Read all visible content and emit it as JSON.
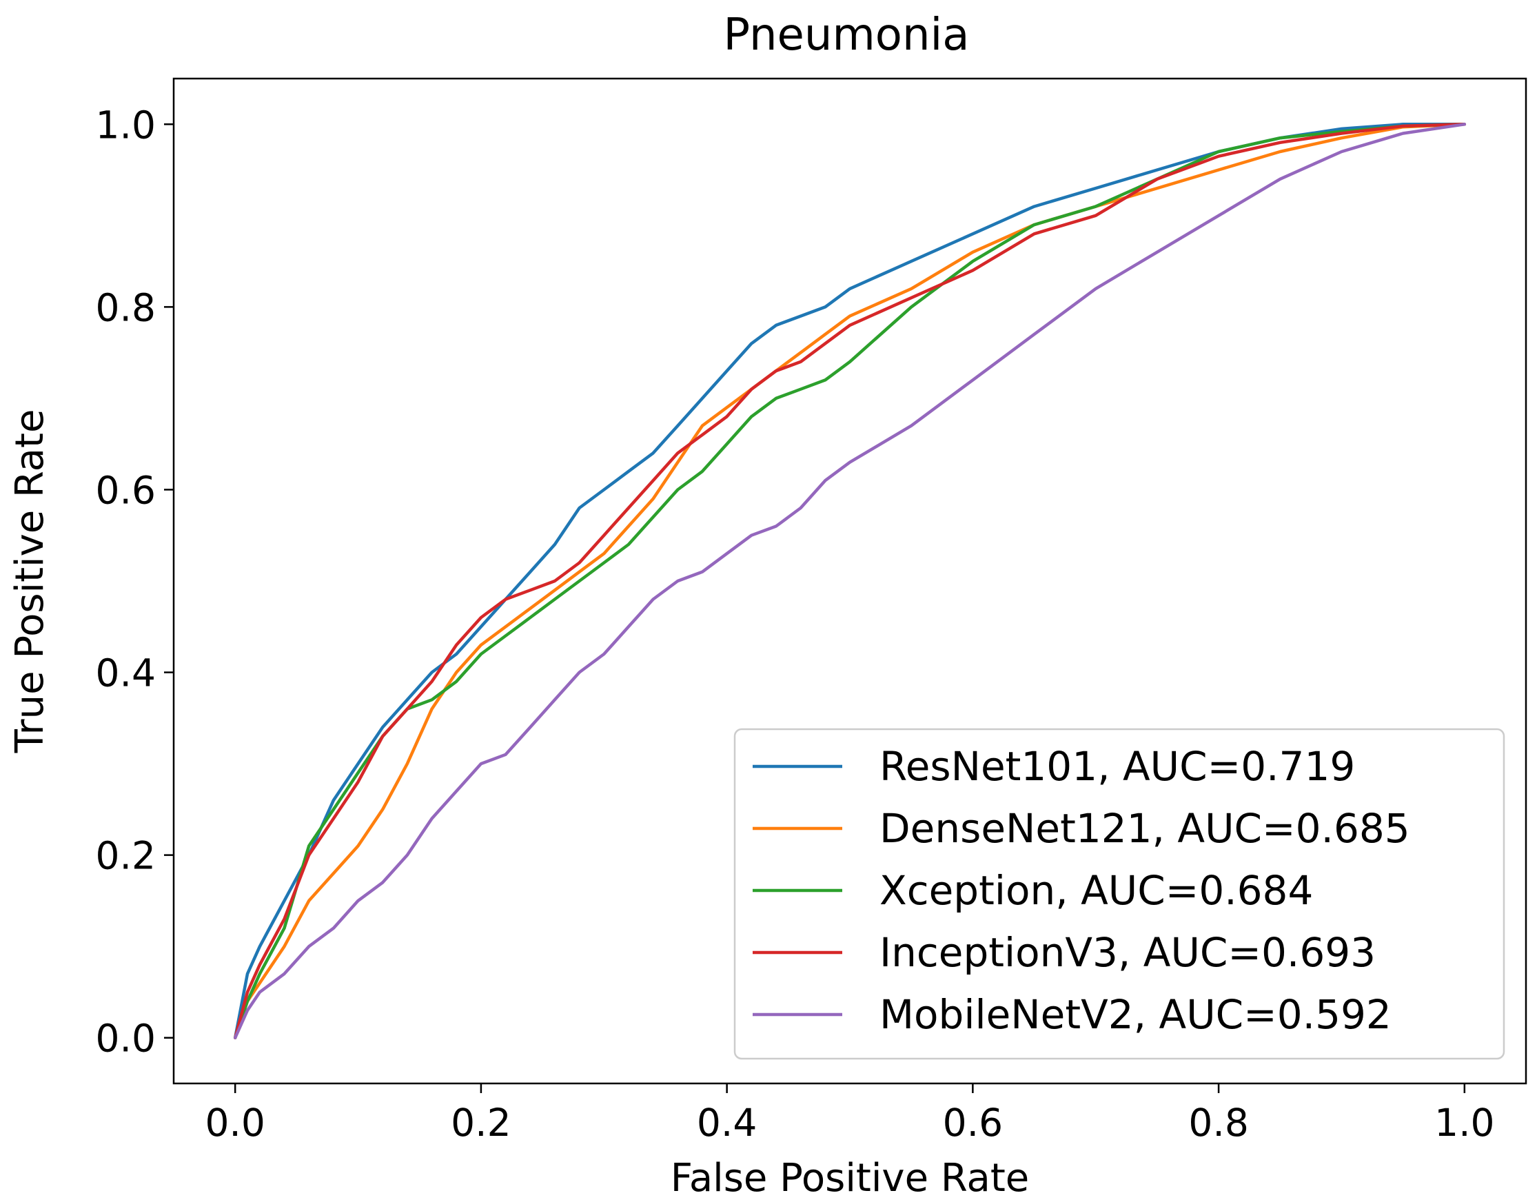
{
  "chart_data": {
    "type": "line",
    "title": "Pneumonia",
    "xlabel": "False Positive Rate",
    "ylabel": "True Positive Rate",
    "xlim": [
      -0.05,
      1.05
    ],
    "ylim": [
      -0.05,
      1.05
    ],
    "xticks": [
      "0.0",
      "0.2",
      "0.4",
      "0.6",
      "0.8",
      "1.0"
    ],
    "yticks": [
      "0.0",
      "0.2",
      "0.4",
      "0.6",
      "0.8",
      "1.0"
    ],
    "grid": false,
    "legend_position": "lower-right",
    "series": [
      {
        "name": "ResNet101, AUC=0.719",
        "color": "#1f77b4",
        "x": [
          0,
          0.01,
          0.02,
          0.04,
          0.06,
          0.08,
          0.1,
          0.12,
          0.14,
          0.16,
          0.18,
          0.2,
          0.22,
          0.24,
          0.26,
          0.28,
          0.3,
          0.32,
          0.34,
          0.36,
          0.38,
          0.4,
          0.42,
          0.44,
          0.46,
          0.48,
          0.5,
          0.55,
          0.6,
          0.65,
          0.7,
          0.75,
          0.8,
          0.85,
          0.9,
          0.95,
          1.0
        ],
        "y": [
          0,
          0.07,
          0.1,
          0.15,
          0.2,
          0.26,
          0.3,
          0.34,
          0.37,
          0.4,
          0.42,
          0.45,
          0.48,
          0.51,
          0.54,
          0.58,
          0.6,
          0.62,
          0.64,
          0.67,
          0.7,
          0.73,
          0.76,
          0.78,
          0.79,
          0.8,
          0.82,
          0.85,
          0.88,
          0.91,
          0.93,
          0.95,
          0.97,
          0.985,
          0.995,
          1.0,
          1.0
        ]
      },
      {
        "name": "DenseNet121, AUC=0.685",
        "color": "#ff7f0e",
        "x": [
          0,
          0.01,
          0.02,
          0.04,
          0.06,
          0.08,
          0.1,
          0.12,
          0.14,
          0.16,
          0.18,
          0.2,
          0.22,
          0.24,
          0.26,
          0.28,
          0.3,
          0.32,
          0.34,
          0.36,
          0.38,
          0.4,
          0.42,
          0.44,
          0.46,
          0.48,
          0.5,
          0.55,
          0.6,
          0.65,
          0.7,
          0.75,
          0.8,
          0.85,
          0.9,
          0.95,
          1.0
        ],
        "y": [
          0,
          0.04,
          0.06,
          0.1,
          0.15,
          0.18,
          0.21,
          0.25,
          0.3,
          0.36,
          0.4,
          0.43,
          0.45,
          0.47,
          0.49,
          0.51,
          0.53,
          0.56,
          0.59,
          0.63,
          0.67,
          0.69,
          0.71,
          0.73,
          0.75,
          0.77,
          0.79,
          0.82,
          0.86,
          0.89,
          0.91,
          0.93,
          0.95,
          0.97,
          0.985,
          0.997,
          1.0
        ]
      },
      {
        "name": "Xception, AUC=0.684",
        "color": "#2ca02c",
        "x": [
          0,
          0.01,
          0.02,
          0.04,
          0.06,
          0.08,
          0.1,
          0.12,
          0.14,
          0.16,
          0.18,
          0.2,
          0.22,
          0.24,
          0.26,
          0.28,
          0.3,
          0.32,
          0.34,
          0.36,
          0.38,
          0.4,
          0.42,
          0.44,
          0.46,
          0.48,
          0.5,
          0.55,
          0.6,
          0.65,
          0.7,
          0.75,
          0.8,
          0.85,
          0.9,
          0.95,
          1.0
        ],
        "y": [
          0,
          0.04,
          0.07,
          0.12,
          0.21,
          0.25,
          0.29,
          0.33,
          0.36,
          0.37,
          0.39,
          0.42,
          0.44,
          0.46,
          0.48,
          0.5,
          0.52,
          0.54,
          0.57,
          0.6,
          0.62,
          0.65,
          0.68,
          0.7,
          0.71,
          0.72,
          0.74,
          0.8,
          0.85,
          0.89,
          0.91,
          0.94,
          0.97,
          0.985,
          0.992,
          0.998,
          1.0
        ]
      },
      {
        "name": "InceptionV3, AUC=0.693",
        "color": "#d62728",
        "x": [
          0,
          0.01,
          0.02,
          0.04,
          0.06,
          0.08,
          0.1,
          0.12,
          0.14,
          0.16,
          0.18,
          0.2,
          0.22,
          0.24,
          0.26,
          0.28,
          0.3,
          0.32,
          0.34,
          0.36,
          0.38,
          0.4,
          0.42,
          0.44,
          0.46,
          0.48,
          0.5,
          0.55,
          0.6,
          0.65,
          0.7,
          0.75,
          0.8,
          0.85,
          0.9,
          0.95,
          1.0
        ],
        "y": [
          0,
          0.05,
          0.08,
          0.13,
          0.2,
          0.24,
          0.28,
          0.33,
          0.36,
          0.39,
          0.43,
          0.46,
          0.48,
          0.49,
          0.5,
          0.52,
          0.55,
          0.58,
          0.61,
          0.64,
          0.66,
          0.68,
          0.71,
          0.73,
          0.74,
          0.76,
          0.78,
          0.81,
          0.84,
          0.88,
          0.9,
          0.94,
          0.965,
          0.98,
          0.99,
          0.998,
          1.0
        ]
      },
      {
        "name": "MobileNetV2, AUC=0.592",
        "color": "#9467bd",
        "x": [
          0,
          0.01,
          0.02,
          0.04,
          0.06,
          0.08,
          0.1,
          0.12,
          0.14,
          0.16,
          0.18,
          0.2,
          0.22,
          0.24,
          0.26,
          0.28,
          0.3,
          0.32,
          0.34,
          0.36,
          0.38,
          0.4,
          0.42,
          0.44,
          0.46,
          0.48,
          0.5,
          0.55,
          0.6,
          0.65,
          0.7,
          0.75,
          0.8,
          0.85,
          0.9,
          0.95,
          1.0
        ],
        "y": [
          0,
          0.03,
          0.05,
          0.07,
          0.1,
          0.12,
          0.15,
          0.17,
          0.2,
          0.24,
          0.27,
          0.3,
          0.31,
          0.34,
          0.37,
          0.4,
          0.42,
          0.45,
          0.48,
          0.5,
          0.51,
          0.53,
          0.55,
          0.56,
          0.58,
          0.61,
          0.63,
          0.67,
          0.72,
          0.77,
          0.82,
          0.86,
          0.9,
          0.94,
          0.97,
          0.99,
          1.0
        ]
      }
    ]
  }
}
